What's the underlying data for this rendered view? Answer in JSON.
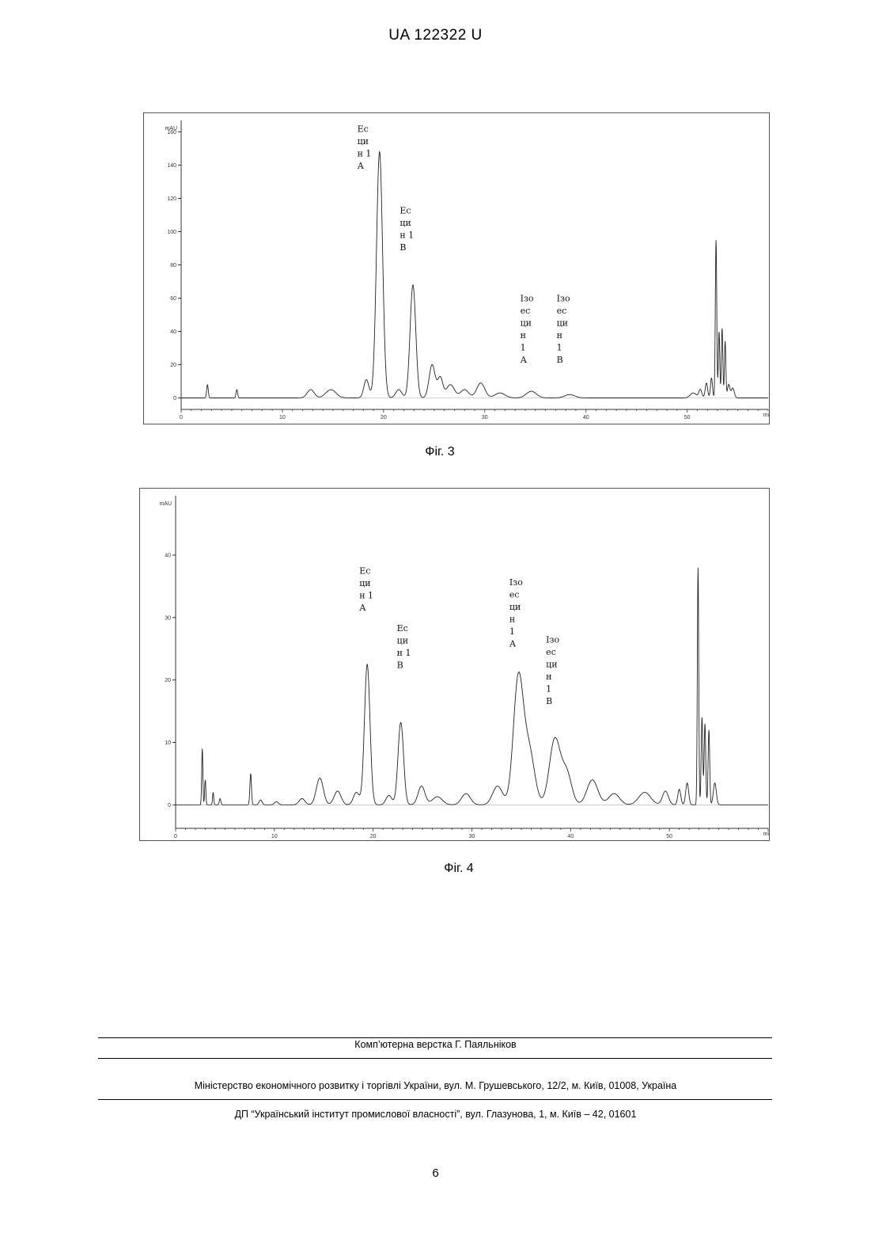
{
  "header": {
    "doc_number": "UA   122322   U"
  },
  "figures": [
    {
      "caption": "Фіг. 3"
    },
    {
      "caption": "Фіг. 4"
    }
  ],
  "footer": {
    "typesetter": "Комп’ютерна верстка Г. Паяльніков",
    "ministry": "Міністерство економічного розвитку і торгівлі України, вул. М. Грушевського, 12/2, м. Київ, 01008, Україна",
    "institute": "ДП “Український інститут промислової власності”, вул. Глазунова, 1, м. Київ – 42, 01601"
  },
  "page_number": "6",
  "chart_data": [
    {
      "type": "line",
      "unit_label": "mAU",
      "x_unit_label": "mi",
      "xlim": [
        0,
        58
      ],
      "ylim": [
        -5,
        165
      ],
      "xticks": [
        "0",
        "10",
        "20",
        "30",
        "40",
        "50"
      ],
      "yticks": [
        "0",
        "20",
        "40",
        "60",
        "80",
        "100",
        "120",
        "140",
        "160"
      ],
      "ytick_values": [
        0,
        20,
        40,
        60,
        80,
        100,
        120,
        140,
        160
      ],
      "baseline": 0,
      "peaks": [
        {
          "x": 2.6,
          "h": 8,
          "w": 0.08
        },
        {
          "x": 5.5,
          "h": 5,
          "w": 0.08
        },
        {
          "x": 12.8,
          "h": 5,
          "w": 0.35
        },
        {
          "x": 14.8,
          "h": 5,
          "w": 0.5
        },
        {
          "x": 18.3,
          "h": 11,
          "w": 0.25
        },
        {
          "x": 19.6,
          "h": 148,
          "w": 0.3
        },
        {
          "x": 21.5,
          "h": 5,
          "w": 0.3
        },
        {
          "x": 22.9,
          "h": 68,
          "w": 0.28
        },
        {
          "x": 24.8,
          "h": 20,
          "w": 0.3
        },
        {
          "x": 25.6,
          "h": 12,
          "w": 0.25
        },
        {
          "x": 26.6,
          "h": 8,
          "w": 0.4
        },
        {
          "x": 28.0,
          "h": 5,
          "w": 0.4
        },
        {
          "x": 29.6,
          "h": 9,
          "w": 0.4
        },
        {
          "x": 31.5,
          "h": 3,
          "w": 0.5
        },
        {
          "x": 34.6,
          "h": 4,
          "w": 0.5
        },
        {
          "x": 38.4,
          "h": 2,
          "w": 0.5
        },
        {
          "x": 50.6,
          "h": 3,
          "w": 0.3
        },
        {
          "x": 51.3,
          "h": 5,
          "w": 0.15
        },
        {
          "x": 51.9,
          "h": 9,
          "w": 0.12
        },
        {
          "x": 52.4,
          "h": 12,
          "w": 0.1
        },
        {
          "x": 52.85,
          "h": 95,
          "w": 0.07
        },
        {
          "x": 53.15,
          "h": 40,
          "w": 0.07
        },
        {
          "x": 53.45,
          "h": 42,
          "w": 0.07
        },
        {
          "x": 53.75,
          "h": 34,
          "w": 0.07
        },
        {
          "x": 54.1,
          "h": 8,
          "w": 0.12
        },
        {
          "x": 54.5,
          "h": 6,
          "w": 0.15
        }
      ],
      "annotations": [
        {
          "lines": [
            "Ес",
            "ци",
            "н 1",
            "А"
          ],
          "x": 17.4,
          "y": 160
        },
        {
          "lines": [
            "Ес",
            "ци",
            "н 1",
            "В"
          ],
          "x": 21.6,
          "y": 111
        },
        {
          "lines": [
            "Ізо",
            "ес",
            "ци",
            "н",
            "1",
            "А"
          ],
          "x": 33.5,
          "y": 58
        },
        {
          "lines": [
            "Ізо",
            "ес",
            "ци",
            "н",
            "1",
            "В"
          ],
          "x": 37.1,
          "y": 58
        }
      ]
    },
    {
      "type": "line",
      "unit_label": "mAU",
      "x_unit_label": "mi",
      "xlim": [
        0,
        60
      ],
      "ylim": [
        -3,
        49
      ],
      "xticks": [
        "0",
        "10",
        "20",
        "30",
        "40",
        "50"
      ],
      "yticks": [
        "0",
        "10",
        "20",
        "30",
        "40"
      ],
      "ytick_values": [
        0,
        10,
        20,
        30,
        40
      ],
      "baseline": 0,
      "peaks": [
        {
          "x": 2.7,
          "h": 9,
          "w": 0.06
        },
        {
          "x": 3.0,
          "h": 4,
          "w": 0.06
        },
        {
          "x": 3.8,
          "h": 2,
          "w": 0.06
        },
        {
          "x": 4.5,
          "h": 1,
          "w": 0.08
        },
        {
          "x": 7.6,
          "h": 5,
          "w": 0.08
        },
        {
          "x": 8.6,
          "h": 0.8,
          "w": 0.15
        },
        {
          "x": 10.2,
          "h": 0.5,
          "w": 0.2
        },
        {
          "x": 12.8,
          "h": 1,
          "w": 0.3
        },
        {
          "x": 14.6,
          "h": 4.3,
          "w": 0.35
        },
        {
          "x": 16.4,
          "h": 2.2,
          "w": 0.35
        },
        {
          "x": 18.3,
          "h": 2,
          "w": 0.3
        },
        {
          "x": 19.4,
          "h": 22.5,
          "w": 0.28
        },
        {
          "x": 21.6,
          "h": 1.5,
          "w": 0.3
        },
        {
          "x": 22.8,
          "h": 13.2,
          "w": 0.28
        },
        {
          "x": 24.9,
          "h": 3,
          "w": 0.35
        },
        {
          "x": 26.5,
          "h": 1.3,
          "w": 0.5
        },
        {
          "x": 29.4,
          "h": 1.8,
          "w": 0.45
        },
        {
          "x": 32.6,
          "h": 3,
          "w": 0.5
        },
        {
          "x": 34.7,
          "h": 20,
          "w": 0.5
        },
        {
          "x": 35.8,
          "h": 8.5,
          "w": 0.55
        },
        {
          "x": 38.4,
          "h": 10.5,
          "w": 0.55
        },
        {
          "x": 39.6,
          "h": 5,
          "w": 0.5
        },
        {
          "x": 42.2,
          "h": 4,
          "w": 0.55
        },
        {
          "x": 44.4,
          "h": 1.8,
          "w": 0.55
        },
        {
          "x": 47.5,
          "h": 2,
          "w": 0.6
        },
        {
          "x": 49.6,
          "h": 2.2,
          "w": 0.3
        },
        {
          "x": 51.0,
          "h": 2.5,
          "w": 0.15
        },
        {
          "x": 51.8,
          "h": 3.5,
          "w": 0.15
        },
        {
          "x": 52.9,
          "h": 38,
          "w": 0.07
        },
        {
          "x": 53.3,
          "h": 14,
          "w": 0.08
        },
        {
          "x": 53.6,
          "h": 13,
          "w": 0.08
        },
        {
          "x": 54.0,
          "h": 12,
          "w": 0.08
        },
        {
          "x": 54.6,
          "h": 3.5,
          "w": 0.15
        }
      ],
      "annotations": [
        {
          "lines": [
            "Ес",
            "ци",
            "н 1",
            "А"
          ],
          "x": 18.6,
          "y": 37
        },
        {
          "lines": [
            "Ес",
            "ци",
            "н 1",
            "В"
          ],
          "x": 22.4,
          "y": 27.8
        },
        {
          "lines": [
            "Ізо",
            "ес",
            "ци",
            "н",
            "1",
            "А"
          ],
          "x": 33.8,
          "y": 35.2
        },
        {
          "lines": [
            "Ізо",
            "ес",
            "ци",
            "н",
            "1",
            "В"
          ],
          "x": 37.5,
          "y": 26
        }
      ]
    }
  ]
}
